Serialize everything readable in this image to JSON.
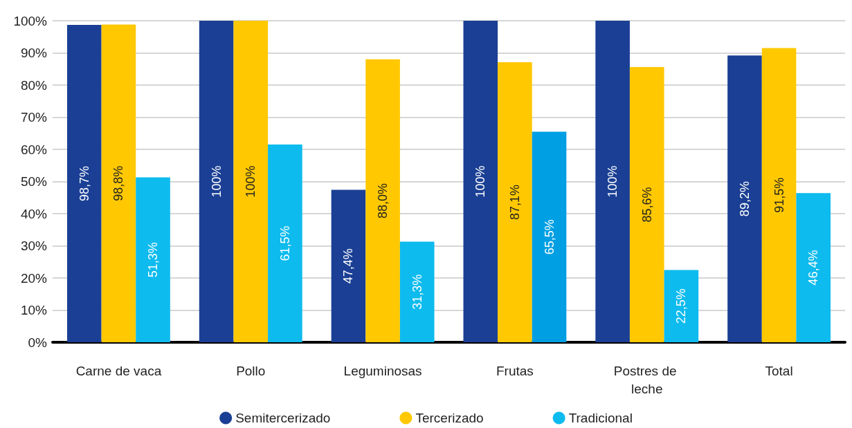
{
  "chart_data": {
    "type": "bar",
    "categories": [
      "Carne de vaca",
      "Pollo",
      "Leguminosas",
      "Frutas",
      "Postres de leche",
      "Total"
    ],
    "series": [
      {
        "name": "Semitercerizado",
        "color": "#1a3f94",
        "values": [
          98.7,
          100,
          47.4,
          100,
          100,
          89.2
        ],
        "value_labels": [
          "98,7%",
          "100%",
          "47,4%",
          "100%",
          "100%",
          "89,2%"
        ]
      },
      {
        "name": "Tercerizado",
        "color": "#ffc800",
        "values": [
          98.8,
          100,
          88.0,
          87.1,
          85.6,
          91.5
        ],
        "value_labels": [
          "98,8%",
          "100%",
          "88,0%",
          "87,1%",
          "85,6%",
          "91,5%"
        ]
      },
      {
        "name": "Tradicional",
        "color": "#0dbbee",
        "colors": [
          "#0dbbee",
          "#0dbbee",
          "#0dbbee",
          "#009fe3",
          "#0dbbee",
          "#0dbbee"
        ],
        "values": [
          51.3,
          61.5,
          31.3,
          65.5,
          22.5,
          46.4
        ],
        "value_labels": [
          "51,3%",
          "61,5%",
          "31,3%",
          "65,5%",
          "22,5%",
          "46,4%"
        ]
      }
    ],
    "ylim": [
      0,
      100
    ],
    "yticks": [
      {
        "value": 0,
        "label": "0%"
      },
      {
        "value": 10,
        "label": "10%"
      },
      {
        "value": 20,
        "label": "20%"
      },
      {
        "value": 30,
        "label": "30%"
      },
      {
        "value": 40,
        "label": "40%"
      },
      {
        "value": 50,
        "label": "50%"
      },
      {
        "value": 60,
        "label": "60%"
      },
      {
        "value": 70,
        "label": "70%"
      },
      {
        "value": 80,
        "label": "80%"
      },
      {
        "value": 90,
        "label": "90%"
      },
      {
        "value": 100,
        "label": "100%"
      }
    ],
    "grid": "y",
    "legend": "bottom",
    "marker": "circle"
  }
}
